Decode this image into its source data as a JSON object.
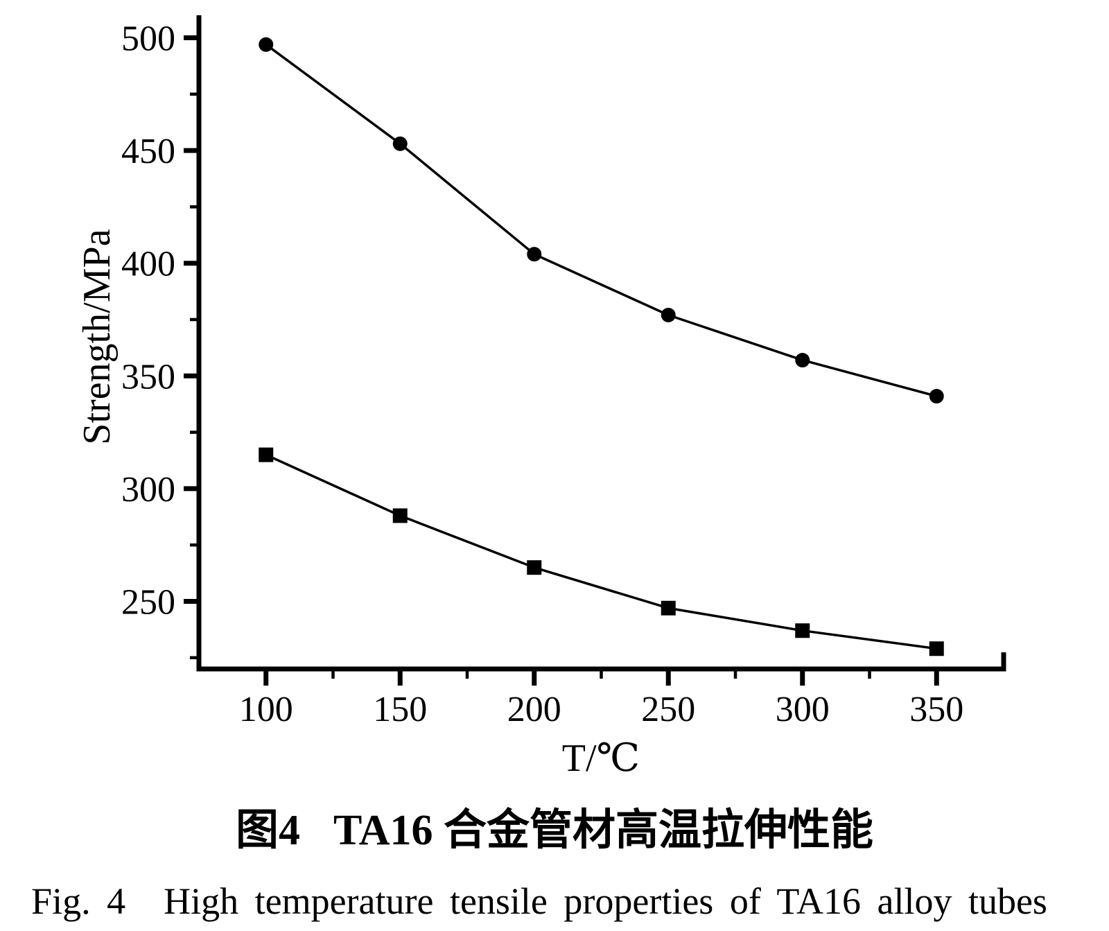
{
  "figure": {
    "background": "#ffffff",
    "ink": "#000000"
  },
  "captions": {
    "zh_label": "图4",
    "zh_text": "TA16 合金管材高温拉伸性能",
    "en_label": "Fig. 4",
    "en_text": "High temperature tensile properties of TA16 alloy tubes"
  },
  "chart_data": {
    "type": "line",
    "title": "",
    "xlabel": "T/℃",
    "ylabel": "Strength/MPa",
    "x": [
      100,
      150,
      200,
      250,
      300,
      350
    ],
    "series": [
      {
        "name": "upper-series-filled-circles",
        "marker": "circle",
        "values": [
          497,
          453,
          404,
          377,
          357,
          341
        ]
      },
      {
        "name": "lower-series-filled-squares",
        "marker": "square",
        "values": [
          315,
          288,
          265,
          247,
          237,
          229
        ]
      }
    ],
    "xlim": [
      75,
      375
    ],
    "ylim": [
      220,
      510
    ],
    "x_major_ticks": [
      100,
      150,
      200,
      250,
      300,
      350
    ],
    "x_minor_ticks": [
      125,
      175,
      225,
      275,
      325
    ],
    "y_major_ticks": [
      250,
      300,
      350,
      400,
      450,
      500
    ],
    "y_minor_ticks": [
      225,
      275,
      325,
      375,
      425,
      475
    ],
    "grid": false,
    "legend": "none",
    "line_color": "#000000",
    "marker_color": "#000000"
  }
}
